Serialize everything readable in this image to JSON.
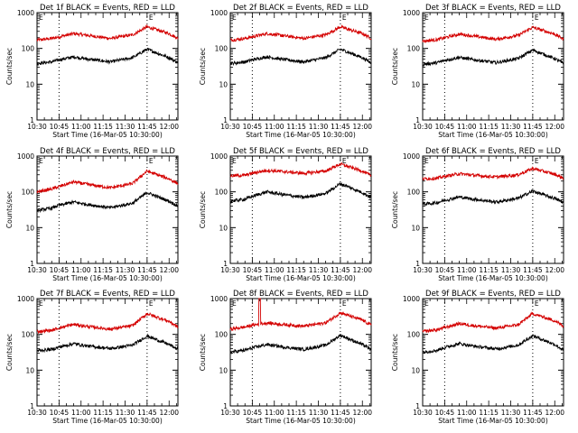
{
  "colors": {
    "events": "#000000",
    "lld": "#d40000",
    "axis": "#000000",
    "background": "#ffffff"
  },
  "chart_data": [
    {
      "type": "line",
      "title": "Det 1f BLACK = Events, RED = LLD",
      "xlabel": "Start Time (16-Mar-05 10:30:00)",
      "ylabel": "Counts/sec",
      "xticks": [
        "10:30",
        "10:45",
        "11:00",
        "11:15",
        "11:30",
        "11:45",
        "12:00"
      ],
      "yticks": [
        "1",
        "10",
        "100",
        "1000"
      ],
      "yscale": "log",
      "ylim": [
        1,
        1000
      ],
      "xlim": [
        "10:30",
        "12:06"
      ],
      "markers": [
        "10:45",
        "11:45"
      ],
      "marker_labels": [
        "E"
      ],
      "grid": false,
      "series": [
        {
          "color": "red",
          "x": [
            "10:30",
            "10:40",
            "10:45",
            "10:55",
            "11:05",
            "11:20",
            "11:35",
            "11:45",
            "12:00",
            "12:06"
          ],
          "y": [
            170,
            190,
            210,
            260,
            230,
            190,
            240,
            400,
            260,
            190
          ]
        },
        {
          "color": "black",
          "x": [
            "10:30",
            "10:40",
            "10:45",
            "10:55",
            "11:05",
            "11:20",
            "11:35",
            "11:45",
            "12:00",
            "12:06"
          ],
          "y": [
            38,
            42,
            48,
            58,
            50,
            42,
            55,
            95,
            55,
            40
          ]
        }
      ]
    },
    {
      "type": "line",
      "title": "Det 2f BLACK = Events, RED = LLD",
      "xlabel": "Start Time (16-Mar-05 10:30:00)",
      "ylabel": "Counts/sec",
      "xticks": [
        "10:30",
        "10:45",
        "11:00",
        "11:15",
        "11:30",
        "11:45",
        "12:00"
      ],
      "yticks": [
        "1",
        "10",
        "100",
        "1000"
      ],
      "yscale": "log",
      "ylim": [
        1,
        1000
      ],
      "xlim": [
        "10:30",
        "12:06"
      ],
      "markers": [
        "10:45",
        "11:45"
      ],
      "marker_labels": [
        "E"
      ],
      "grid": false,
      "series": [
        {
          "color": "red",
          "x": [
            "10:30",
            "10:40",
            "10:45",
            "10:55",
            "11:05",
            "11:20",
            "11:35",
            "11:45",
            "12:00",
            "12:06"
          ],
          "y": [
            170,
            190,
            210,
            260,
            230,
            190,
            240,
            400,
            260,
            190
          ]
        },
        {
          "color": "black",
          "x": [
            "10:30",
            "10:40",
            "10:45",
            "10:55",
            "11:05",
            "11:20",
            "11:35",
            "11:45",
            "12:00",
            "12:06"
          ],
          "y": [
            38,
            42,
            48,
            58,
            50,
            42,
            55,
            95,
            55,
            40
          ]
        }
      ]
    },
    {
      "type": "line",
      "title": "Det 3f BLACK = Events, RED = LLD",
      "xlabel": "Start Time (16-Mar-05 10:30:00)",
      "ylabel": "Counts/sec",
      "xticks": [
        "10:30",
        "10:45",
        "11:00",
        "11:15",
        "11:30",
        "11:45",
        "12:00"
      ],
      "yticks": [
        "1",
        "10",
        "100",
        "1000"
      ],
      "yscale": "log",
      "ylim": [
        1,
        1000
      ],
      "xlim": [
        "10:30",
        "12:06"
      ],
      "markers": [
        "10:45",
        "11:45"
      ],
      "marker_labels": [
        "E"
      ],
      "grid": false,
      "series": [
        {
          "color": "red",
          "x": [
            "10:30",
            "10:40",
            "10:45",
            "10:55",
            "11:05",
            "11:20",
            "11:35",
            "11:45",
            "12:00",
            "12:06"
          ],
          "y": [
            160,
            175,
            200,
            250,
            220,
            180,
            230,
            390,
            250,
            180
          ]
        },
        {
          "color": "black",
          "x": [
            "10:30",
            "10:40",
            "10:45",
            "10:55",
            "11:05",
            "11:20",
            "11:35",
            "11:45",
            "12:00",
            "12:06"
          ],
          "y": [
            36,
            40,
            46,
            56,
            48,
            40,
            52,
            90,
            52,
            38
          ]
        }
      ]
    },
    {
      "type": "line",
      "title": "Det 4f BLACK = Events, RED = LLD",
      "xlabel": "Start Time (16-Mar-05 10:30:00)",
      "ylabel": "Counts/sec",
      "xticks": [
        "10:30",
        "10:45",
        "11:00",
        "11:15",
        "11:30",
        "11:45",
        "12:00"
      ],
      "yticks": [
        "1",
        "10",
        "100",
        "1000"
      ],
      "yscale": "log",
      "ylim": [
        1,
        1000
      ],
      "xlim": [
        "10:30",
        "12:06"
      ],
      "markers": [
        "10:45",
        "11:45"
      ],
      "marker_labels": [
        "E"
      ],
      "grid": false,
      "series": [
        {
          "color": "red",
          "x": [
            "10:30",
            "10:40",
            "10:45",
            "10:55",
            "11:05",
            "11:20",
            "11:35",
            "11:45",
            "12:00",
            "12:06"
          ],
          "y": [
            100,
            120,
            140,
            190,
            160,
            130,
            170,
            380,
            230,
            170
          ]
        },
        {
          "color": "black",
          "x": [
            "10:30",
            "10:40",
            "10:45",
            "10:55",
            "11:05",
            "11:20",
            "11:35",
            "11:45",
            "12:00",
            "12:06"
          ],
          "y": [
            30,
            35,
            42,
            52,
            44,
            36,
            48,
            95,
            55,
            40
          ]
        }
      ]
    },
    {
      "type": "line",
      "title": "Det 5f BLACK = Events, RED = LLD",
      "xlabel": "Start Time (16-Mar-05 10:30:00)",
      "ylabel": "Counts/sec",
      "xticks": [
        "10:30",
        "10:45",
        "11:00",
        "11:15",
        "11:30",
        "11:45",
        "12:00"
      ],
      "yticks": [
        "1",
        "10",
        "100",
        "1000"
      ],
      "yscale": "log",
      "ylim": [
        1,
        1000
      ],
      "xlim": [
        "10:30",
        "12:06"
      ],
      "markers": [
        "10:45",
        "11:45"
      ],
      "marker_labels": [
        "E"
      ],
      "grid": false,
      "series": [
        {
          "color": "red",
          "x": [
            "10:30",
            "10:40",
            "10:45",
            "10:55",
            "11:05",
            "11:20",
            "11:35",
            "11:45",
            "12:00",
            "12:06"
          ],
          "y": [
            280,
            290,
            330,
            400,
            370,
            330,
            380,
            600,
            380,
            280
          ]
        },
        {
          "color": "black",
          "x": [
            "10:30",
            "10:40",
            "10:45",
            "10:55",
            "11:05",
            "11:20",
            "11:35",
            "11:45",
            "12:00",
            "12:06"
          ],
          "y": [
            55,
            62,
            75,
            100,
            85,
            70,
            90,
            170,
            95,
            70
          ]
        }
      ]
    },
    {
      "type": "line",
      "title": "Det 6f BLACK = Events, RED = LLD",
      "xlabel": "Start Time (16-Mar-05 10:30:00)",
      "ylabel": "Counts/sec",
      "xticks": [
        "10:30",
        "10:45",
        "11:00",
        "11:15",
        "11:30",
        "11:45",
        "12:00"
      ],
      "yticks": [
        "1",
        "10",
        "100",
        "1000"
      ],
      "yscale": "log",
      "ylim": [
        1,
        1000
      ],
      "xlim": [
        "10:30",
        "12:06"
      ],
      "markers": [
        "10:45",
        "11:45"
      ],
      "marker_labels": [
        "E"
      ],
      "grid": false,
      "series": [
        {
          "color": "red",
          "x": [
            "10:30",
            "10:40",
            "10:45",
            "10:55",
            "11:05",
            "11:20",
            "11:35",
            "11:45",
            "12:00",
            "12:06"
          ],
          "y": [
            230,
            240,
            270,
            320,
            290,
            260,
            300,
            450,
            310,
            240
          ]
        },
        {
          "color": "black",
          "x": [
            "10:30",
            "10:40",
            "10:45",
            "10:55",
            "11:05",
            "11:20",
            "11:35",
            "11:45",
            "12:00",
            "12:06"
          ],
          "y": [
            45,
            50,
            58,
            72,
            62,
            52,
            66,
            105,
            65,
            50
          ]
        }
      ]
    },
    {
      "type": "line",
      "title": "Det 7f BLACK = Events, RED = LLD",
      "xlabel": "Start Time (16-Mar-05 10:30:00)",
      "ylabel": "Counts/sec",
      "xticks": [
        "10:30",
        "10:45",
        "11:00",
        "11:15",
        "11:30",
        "11:45",
        "12:00"
      ],
      "yticks": [
        "1",
        "10",
        "100",
        "1000"
      ],
      "yscale": "log",
      "ylim": [
        1,
        1000
      ],
      "xlim": [
        "10:30",
        "12:06"
      ],
      "markers": [
        "10:45",
        "11:45"
      ],
      "marker_labels": [
        "E"
      ],
      "grid": false,
      "series": [
        {
          "color": "red",
          "x": [
            "10:30",
            "10:40",
            "10:45",
            "10:55",
            "11:05",
            "11:20",
            "11:35",
            "11:45",
            "12:00",
            "12:06"
          ],
          "y": [
            120,
            130,
            150,
            190,
            165,
            140,
            175,
            380,
            230,
            160
          ]
        },
        {
          "color": "black",
          "x": [
            "10:30",
            "10:40",
            "10:45",
            "10:55",
            "11:05",
            "11:20",
            "11:35",
            "11:45",
            "12:00",
            "12:06"
          ],
          "y": [
            35,
            38,
            44,
            55,
            47,
            40,
            50,
            90,
            52,
            38
          ]
        }
      ]
    },
    {
      "type": "line",
      "title": "Det 8f BLACK = Events, RED = LLD",
      "xlabel": "Start Time (16-Mar-05 10:30:00)",
      "ylabel": "Counts/sec",
      "xticks": [
        "10:30",
        "10:45",
        "11:00",
        "11:15",
        "11:30",
        "11:45",
        "12:00"
      ],
      "yticks": [
        "1",
        "10",
        "100",
        "1000"
      ],
      "yscale": "log",
      "ylim": [
        1,
        1000
      ],
      "xlim": [
        "10:30",
        "12:06"
      ],
      "markers": [
        "10:45",
        "11:45"
      ],
      "marker_labels": [
        "E"
      ],
      "grid": false,
      "series": [
        {
          "color": "red",
          "x": [
            "10:30",
            "10:40",
            "10:45",
            "10:50",
            "10:55",
            "11:05",
            "11:20",
            "11:35",
            "11:45",
            "12:00",
            "12:06"
          ],
          "y": [
            140,
            160,
            180,
            1000,
            210,
            190,
            170,
            210,
            400,
            250,
            180
          ]
        },
        {
          "color": "black",
          "x": [
            "10:30",
            "10:40",
            "10:45",
            "10:55",
            "11:05",
            "11:20",
            "11:35",
            "11:45",
            "12:00",
            "12:06"
          ],
          "y": [
            32,
            36,
            42,
            52,
            45,
            38,
            50,
            95,
            52,
            38
          ]
        }
      ]
    },
    {
      "type": "line",
      "title": "Det 9f BLACK = Events, RED = LLD",
      "xlabel": "Start Time (16-Mar-05 10:30:00)",
      "ylabel": "Counts/sec",
      "xticks": [
        "10:30",
        "10:45",
        "11:00",
        "11:15",
        "11:30",
        "11:45",
        "12:00"
      ],
      "yticks": [
        "1",
        "10",
        "100",
        "1000"
      ],
      "yscale": "log",
      "ylim": [
        1,
        1000
      ],
      "xlim": [
        "10:30",
        "12:06"
      ],
      "markers": [
        "10:45",
        "11:45"
      ],
      "marker_labels": [
        "E"
      ],
      "grid": false,
      "series": [
        {
          "color": "red",
          "x": [
            "10:30",
            "10:40",
            "10:45",
            "10:55",
            "11:05",
            "11:20",
            "11:35",
            "11:45",
            "12:00",
            "12:06"
          ],
          "y": [
            120,
            135,
            155,
            200,
            175,
            150,
            185,
            380,
            240,
            170
          ]
        },
        {
          "color": "black",
          "x": [
            "10:30",
            "10:40",
            "10:45",
            "10:55",
            "11:05",
            "11:20",
            "11:35",
            "11:45",
            "12:00",
            "12:06"
          ],
          "y": [
            32,
            36,
            43,
            55,
            47,
            39,
            50,
            92,
            52,
            36
          ]
        }
      ]
    }
  ]
}
